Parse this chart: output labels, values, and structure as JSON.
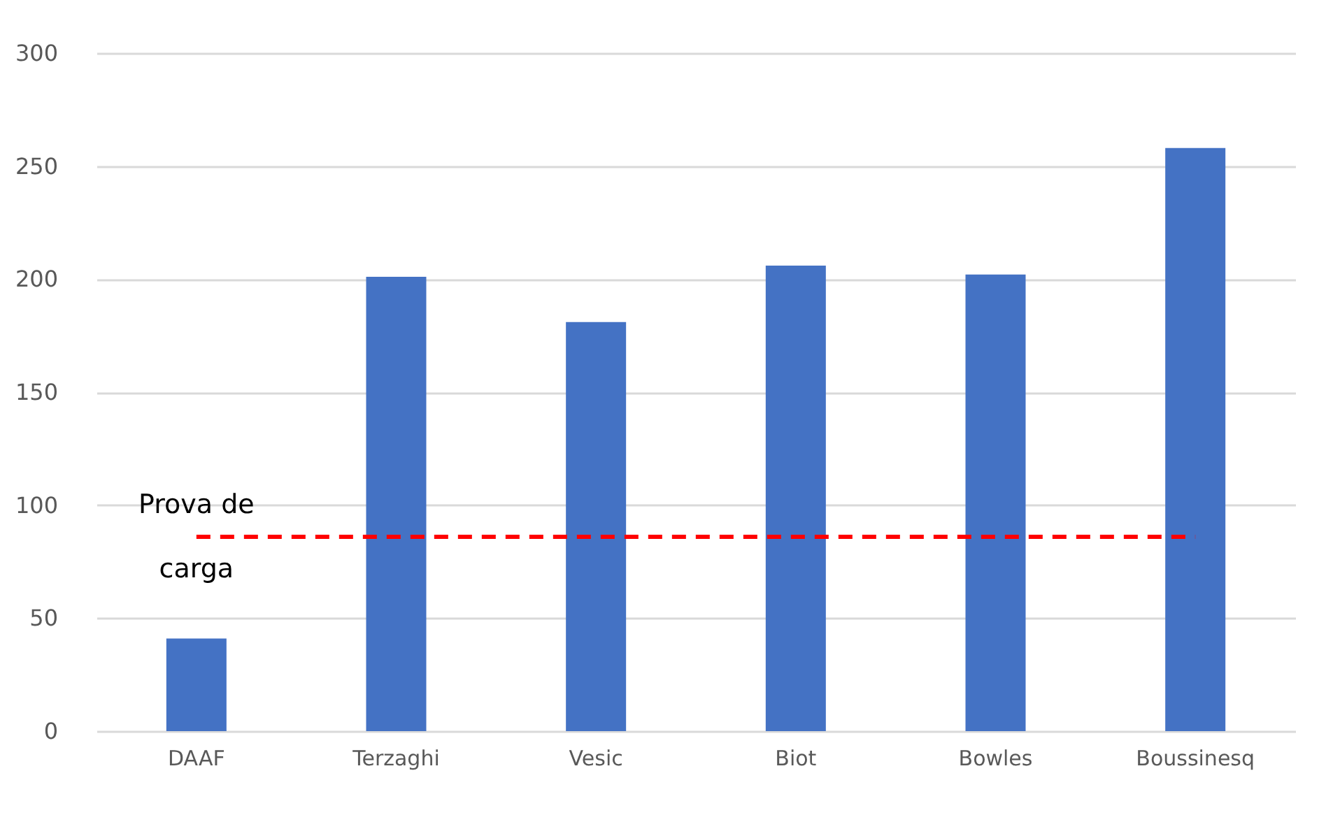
{
  "chart_data": {
    "type": "bar",
    "categories": [
      "DAAF",
      "Terzaghi",
      "Vesic",
      "Biot",
      "Bowles",
      "Boussinesq"
    ],
    "values": [
      41,
      201,
      181,
      206,
      202,
      258
    ],
    "color": "#4472c4",
    "ylim": [
      0,
      300
    ],
    "yticks": [
      0,
      50,
      100,
      150,
      200,
      250,
      300
    ],
    "grid": "y",
    "ref_lines": [
      {
        "axis": "y",
        "value": 86,
        "label": "Prova de carga",
        "color": "#ff0000",
        "line_style": "dashed"
      }
    ]
  }
}
